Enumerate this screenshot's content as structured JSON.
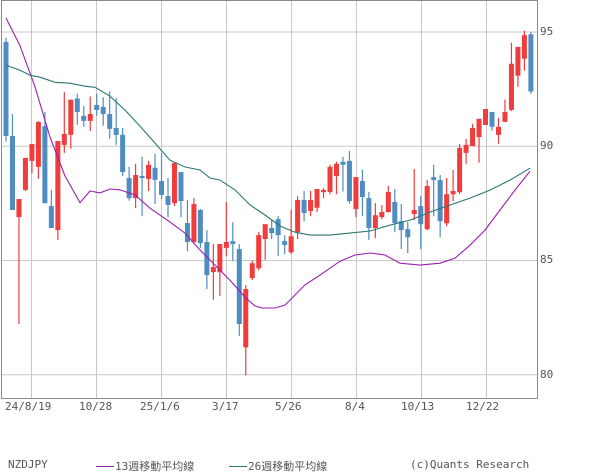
{
  "chart_data": {
    "type": "candlestick",
    "symbol": "NZDJPY",
    "title": "",
    "xlabel": "",
    "ylabel": "",
    "ylim": [
      79.0,
      95.8
    ],
    "y_ticks": [
      80,
      85,
      90,
      95
    ],
    "x_tick_labels": [
      "24/8/19",
      "10/28",
      "25/1/6",
      "3/17",
      "5/26",
      "8/4",
      "10/13",
      "12/22"
    ],
    "grid": true,
    "legend_position": "bottom",
    "colors": {
      "up": "#f03c3c",
      "down": "#4f8cc0",
      "ma13": "#9b1fb0",
      "ma26": "#2b7770",
      "grid": "#c8c8c8",
      "axis": "#888888"
    },
    "candles": [
      {
        "o": 94.57,
        "h": 94.75,
        "l": 90.2,
        "c": 90.45
      },
      {
        "o": 90.45,
        "h": 91.41,
        "l": 87.41,
        "c": 87.21
      },
      {
        "o": 86.9,
        "h": 87.49,
        "l": 82.22,
        "c": 87.69
      },
      {
        "o": 88.09,
        "h": 88.48,
        "l": 88.04,
        "c": 89.49
      },
      {
        "o": 89.36,
        "h": 89.8,
        "l": 88.82,
        "c": 90.1
      },
      {
        "o": 89.1,
        "h": 91.1,
        "l": 88.57,
        "c": 91.06
      },
      {
        "o": 90.88,
        "h": 91.5,
        "l": 87.5,
        "c": 87.51
      },
      {
        "o": 87.38,
        "h": 88.09,
        "l": 86.94,
        "c": 86.42
      },
      {
        "o": 86.33,
        "h": 90.23,
        "l": 85.9,
        "c": 90.23
      },
      {
        "o": 90.06,
        "h": 92.37,
        "l": 89.71,
        "c": 90.54
      },
      {
        "o": 90.5,
        "h": 91.76,
        "l": 89.89,
        "c": 92.04
      },
      {
        "o": 92.09,
        "h": 92.3,
        "l": 90.94,
        "c": 91.5
      },
      {
        "o": 91.33,
        "h": 91.76,
        "l": 90.85,
        "c": 91.11
      },
      {
        "o": 91.11,
        "h": 92.18,
        "l": 90.67,
        "c": 91.41
      },
      {
        "o": 91.81,
        "h": 92.3,
        "l": 91.33,
        "c": 91.59
      },
      {
        "o": 91.72,
        "h": 92.14,
        "l": 90.9,
        "c": 91.41
      },
      {
        "o": 91.41,
        "h": 92.4,
        "l": 90.33,
        "c": 90.76
      },
      {
        "o": 90.8,
        "h": 92.1,
        "l": 90.06,
        "c": 90.5
      },
      {
        "o": 90.5,
        "h": 90.8,
        "l": 88.7,
        "c": 88.87
      },
      {
        "o": 88.61,
        "h": 89.1,
        "l": 87.62,
        "c": 87.73
      },
      {
        "o": 87.73,
        "h": 89.23,
        "l": 87.29,
        "c": 88.74
      },
      {
        "o": 88.7,
        "h": 89.54,
        "l": 86.94,
        "c": 88.61
      },
      {
        "o": 88.57,
        "h": 89.36,
        "l": 88.04,
        "c": 89.19
      },
      {
        "o": 89.06,
        "h": 89.67,
        "l": 87.47,
        "c": 88.53
      },
      {
        "o": 88.48,
        "h": 89.71,
        "l": 87.69,
        "c": 87.87
      },
      {
        "o": 87.82,
        "h": 88.61,
        "l": 86.9,
        "c": 87.43
      },
      {
        "o": 87.51,
        "h": 89.27,
        "l": 87.38,
        "c": 89.27
      },
      {
        "o": 88.87,
        "h": 88.87,
        "l": 86.9,
        "c": 87.6
      },
      {
        "o": 86.64,
        "h": 87.65,
        "l": 85.41,
        "c": 85.81
      },
      {
        "o": 85.81,
        "h": 87.73,
        "l": 85.72,
        "c": 87.47
      },
      {
        "o": 87.21,
        "h": 87.25,
        "l": 85.55,
        "c": 85.76
      },
      {
        "o": 85.81,
        "h": 86.33,
        "l": 83.75,
        "c": 84.36
      },
      {
        "o": 84.49,
        "h": 85.72,
        "l": 83.28,
        "c": 84.71
      },
      {
        "o": 84.49,
        "h": 85.72,
        "l": 83.45,
        "c": 85.72
      },
      {
        "o": 85.55,
        "h": 87.56,
        "l": 85.19,
        "c": 85.81
      },
      {
        "o": 85.85,
        "h": 86.68,
        "l": 84.97,
        "c": 85.72
      },
      {
        "o": 85.5,
        "h": 85.72,
        "l": 81.7,
        "c": 82.22
      },
      {
        "o": 81.2,
        "h": 83.93,
        "l": 79.97,
        "c": 83.75
      },
      {
        "o": 84.23,
        "h": 85.0,
        "l": 84.14,
        "c": 84.88
      },
      {
        "o": 84.66,
        "h": 86.24,
        "l": 84.57,
        "c": 86.11
      },
      {
        "o": 85.94,
        "h": 86.46,
        "l": 85.03,
        "c": 86.59
      },
      {
        "o": 86.42,
        "h": 86.77,
        "l": 85.94,
        "c": 86.2
      },
      {
        "o": 86.81,
        "h": 86.94,
        "l": 85.19,
        "c": 86.11
      },
      {
        "o": 85.85,
        "h": 86.11,
        "l": 85.28,
        "c": 85.68
      },
      {
        "o": 85.36,
        "h": 87.21,
        "l": 85.28,
        "c": 86.06
      },
      {
        "o": 86.24,
        "h": 87.82,
        "l": 85.94,
        "c": 87.65
      },
      {
        "o": 87.65,
        "h": 88.04,
        "l": 86.72,
        "c": 87.08
      },
      {
        "o": 87.17,
        "h": 88.04,
        "l": 86.94,
        "c": 87.65
      },
      {
        "o": 87.31,
        "h": 88.04,
        "l": 87.12,
        "c": 88.13
      },
      {
        "o": 87.99,
        "h": 88.17,
        "l": 87.73,
        "c": 88.09
      },
      {
        "o": 88.0,
        "h": 89.19,
        "l": 87.9,
        "c": 89.1
      },
      {
        "o": 88.7,
        "h": 89.32,
        "l": 87.9,
        "c": 89.23
      },
      {
        "o": 89.32,
        "h": 89.54,
        "l": 88.02,
        "c": 89.19
      },
      {
        "o": 89.36,
        "h": 89.8,
        "l": 87.49,
        "c": 87.6
      },
      {
        "o": 87.25,
        "h": 88.57,
        "l": 86.9,
        "c": 88.65
      },
      {
        "o": 88.48,
        "h": 88.97,
        "l": 86.94,
        "c": 87.78
      },
      {
        "o": 87.73,
        "h": 88.0,
        "l": 85.9,
        "c": 86.42
      },
      {
        "o": 86.42,
        "h": 87.51,
        "l": 85.98,
        "c": 86.98
      },
      {
        "o": 86.9,
        "h": 87.43,
        "l": 86.81,
        "c": 87.12
      },
      {
        "o": 87.12,
        "h": 88.26,
        "l": 87.1,
        "c": 88.0
      },
      {
        "o": 87.56,
        "h": 88.13,
        "l": 86.24,
        "c": 86.64
      },
      {
        "o": 86.72,
        "h": 87.47,
        "l": 85.5,
        "c": 86.33
      },
      {
        "o": 86.37,
        "h": 86.68,
        "l": 85.32,
        "c": 86.02
      },
      {
        "o": 87.03,
        "h": 89.0,
        "l": 86.77,
        "c": 87.21
      },
      {
        "o": 87.38,
        "h": 87.82,
        "l": 85.5,
        "c": 86.59
      },
      {
        "o": 86.37,
        "h": 88.52,
        "l": 86.33,
        "c": 88.26
      },
      {
        "o": 88.65,
        "h": 89.19,
        "l": 86.94,
        "c": 88.52
      },
      {
        "o": 88.52,
        "h": 88.74,
        "l": 86.02,
        "c": 86.72
      },
      {
        "o": 86.63,
        "h": 88.61,
        "l": 86.5,
        "c": 87.9
      },
      {
        "o": 87.9,
        "h": 88.96,
        "l": 87.6,
        "c": 88.04
      },
      {
        "o": 87.99,
        "h": 90.1,
        "l": 87.9,
        "c": 89.93
      },
      {
        "o": 89.71,
        "h": 90.32,
        "l": 89.23,
        "c": 90.06
      },
      {
        "o": 90.01,
        "h": 90.98,
        "l": 90.01,
        "c": 90.8
      },
      {
        "o": 90.4,
        "h": 91.2,
        "l": 89.28,
        "c": 91.2
      },
      {
        "o": 90.93,
        "h": 91.63,
        "l": 90.93,
        "c": 91.63
      },
      {
        "o": 91.5,
        "h": 91.5,
        "l": 90.68,
        "c": 90.85
      },
      {
        "o": 90.5,
        "h": 91.24,
        "l": 90.11,
        "c": 90.85
      },
      {
        "o": 91.07,
        "h": 92.04,
        "l": 91.06,
        "c": 91.5
      },
      {
        "o": 91.59,
        "h": 94.53,
        "l": 91.54,
        "c": 93.61
      },
      {
        "o": 93.09,
        "h": 94.35,
        "l": 92.6,
        "c": 94.35
      },
      {
        "o": 93.83,
        "h": 95.05,
        "l": 93.31,
        "c": 94.86
      },
      {
        "o": 94.9,
        "h": 95.0,
        "l": 92.3,
        "c": 92.4
      }
    ],
    "series": [
      {
        "name": "13週移動平均線",
        "points": [
          [
            6,
            95.61
          ],
          [
            20,
            94.4
          ],
          [
            35,
            92.6
          ],
          [
            50,
            90.4
          ],
          [
            65,
            88.7
          ],
          [
            80,
            87.53
          ],
          [
            90,
            88.04
          ],
          [
            100,
            87.96
          ],
          [
            110,
            88.13
          ],
          [
            120,
            88.09
          ],
          [
            135,
            87.87
          ],
          [
            150,
            87.29
          ],
          [
            170,
            86.68
          ],
          [
            185,
            86.2
          ],
          [
            200,
            85.46
          ],
          [
            215,
            84.8
          ],
          [
            230,
            84.14
          ],
          [
            245,
            83.4
          ],
          [
            255,
            83.01
          ],
          [
            262,
            82.92
          ],
          [
            275,
            82.92
          ],
          [
            285,
            83.05
          ],
          [
            295,
            83.49
          ],
          [
            305,
            83.93
          ],
          [
            320,
            84.36
          ],
          [
            340,
            84.97
          ],
          [
            355,
            85.24
          ],
          [
            370,
            85.33
          ],
          [
            385,
            85.24
          ],
          [
            400,
            84.88
          ],
          [
            420,
            84.8
          ],
          [
            440,
            84.88
          ],
          [
            455,
            85.1
          ],
          [
            470,
            85.67
          ],
          [
            485,
            86.33
          ],
          [
            500,
            87.21
          ],
          [
            515,
            88.08
          ],
          [
            530,
            88.91
          ]
        ]
      },
      {
        "name": "26週移動平均線",
        "points": [
          [
            6,
            93.55
          ],
          [
            20,
            93.33
          ],
          [
            30,
            93.11
          ],
          [
            40,
            93.02
          ],
          [
            55,
            92.8
          ],
          [
            70,
            92.76
          ],
          [
            85,
            92.63
          ],
          [
            95,
            92.58
          ],
          [
            110,
            92.19
          ],
          [
            125,
            91.58
          ],
          [
            140,
            90.88
          ],
          [
            155,
            90.14
          ],
          [
            170,
            89.39
          ],
          [
            185,
            89.09
          ],
          [
            200,
            88.96
          ],
          [
            210,
            88.61
          ],
          [
            220,
            88.52
          ],
          [
            235,
            88.09
          ],
          [
            250,
            87.43
          ],
          [
            265,
            86.99
          ],
          [
            280,
            86.51
          ],
          [
            295,
            86.24
          ],
          [
            310,
            86.11
          ],
          [
            330,
            86.11
          ],
          [
            350,
            86.2
          ],
          [
            370,
            86.29
          ],
          [
            390,
            86.55
          ],
          [
            410,
            86.77
          ],
          [
            430,
            87.12
          ],
          [
            450,
            87.43
          ],
          [
            470,
            87.73
          ],
          [
            490,
            88.08
          ],
          [
            510,
            88.52
          ],
          [
            530,
            89.04
          ]
        ]
      }
    ]
  },
  "legend": {
    "symbol": "NZDJPY",
    "ma13_label": "13週移動平均線",
    "ma26_label": "26週移動平均線",
    "credit": "(c)Quants Research"
  },
  "y_axis": {
    "t95": "95",
    "t90": "90",
    "t85": "85",
    "t80": "80"
  },
  "x_axis": {
    "t0": "24/8/19",
    "t1": "10/28",
    "t2": "25/1/6",
    "t3": "3/17",
    "t4": "5/26",
    "t5": "8/4",
    "t6": "10/13",
    "t7": "12/22"
  }
}
